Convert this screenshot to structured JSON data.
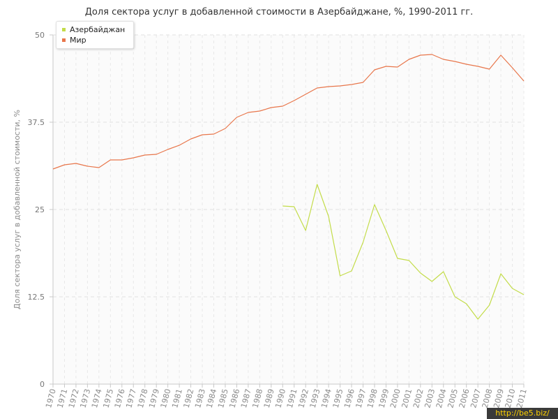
{
  "title": "Доля сектора услуг в добавленной стоимости в Азербайджане, %, 1990-2011 гг.",
  "watermark": "http://be5.biz/",
  "chart_data": {
    "type": "line",
    "title": "Доля сектора услуг в добавленной стоимости в Азербайджане, %, 1990-2011 гг.",
    "xlabel": "",
    "ylabel": "Доля сектора услуг в добавленной стоимости, %",
    "ylim": [
      0,
      50
    ],
    "yticks": [
      0,
      12.5,
      25,
      37.5,
      50
    ],
    "ytick_labels": [
      "0",
      "12.5",
      "25",
      "37.5",
      "50"
    ],
    "grid": true,
    "legend_position": "top-left",
    "x": [
      1970,
      1971,
      1972,
      1973,
      1974,
      1975,
      1976,
      1977,
      1978,
      1979,
      1980,
      1981,
      1982,
      1983,
      1984,
      1985,
      1986,
      1987,
      1988,
      1989,
      1990,
      1991,
      1992,
      1993,
      1994,
      1995,
      1996,
      1997,
      1998,
      1999,
      2000,
      2001,
      2002,
      2003,
      2004,
      2005,
      2006,
      2007,
      2008,
      2009,
      2010,
      2011
    ],
    "series": [
      {
        "name": "Азербайджан",
        "color": "#c3dc49",
        "values": [
          null,
          null,
          null,
          null,
          null,
          null,
          null,
          null,
          null,
          null,
          null,
          null,
          null,
          null,
          null,
          null,
          null,
          null,
          null,
          null,
          25.5,
          25.4,
          22.0,
          28.6,
          24.0,
          15.5,
          16.2,
          20.3,
          25.7,
          22.0,
          18.0,
          17.7,
          15.9,
          14.7,
          16.1,
          12.5,
          11.5,
          9.3,
          11.3,
          15.8,
          13.7,
          12.8
        ]
      },
      {
        "name": "Мир",
        "color": "#e8764b",
        "values": [
          30.8,
          31.4,
          31.6,
          31.2,
          31.0,
          32.1,
          32.1,
          32.4,
          32.8,
          32.9,
          33.6,
          34.2,
          35.1,
          35.7,
          35.8,
          36.6,
          38.2,
          38.9,
          39.1,
          39.6,
          39.8,
          40.6,
          41.5,
          42.4,
          42.6,
          42.7,
          42.9,
          43.2,
          45.0,
          45.5,
          45.4,
          46.5,
          47.1,
          47.2,
          46.5,
          46.2,
          45.8,
          45.5,
          45.1,
          47.1,
          45.3,
          43.4
        ]
      }
    ]
  }
}
